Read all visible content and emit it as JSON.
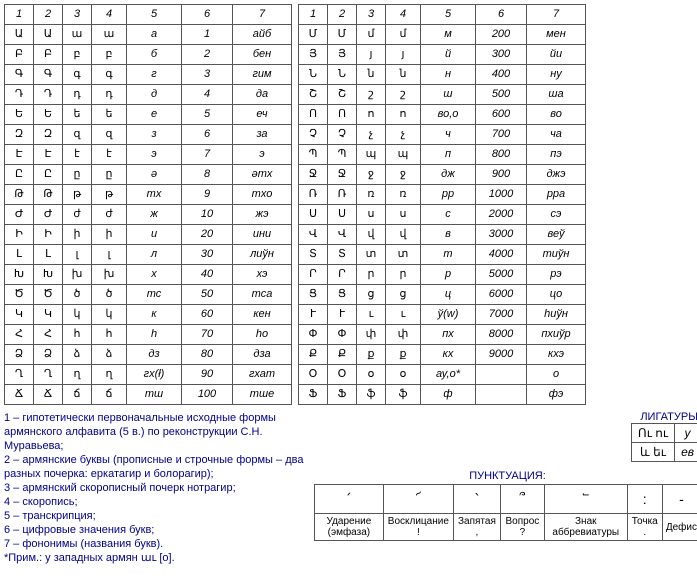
{
  "headers": [
    "1",
    "2",
    "3",
    "4",
    "5",
    "6",
    "7"
  ],
  "left_rows": [
    [
      "Ա",
      "Ա",
      "ա",
      "ա",
      "а",
      "1",
      "айб"
    ],
    [
      "Բ",
      "Բ",
      "բ",
      "բ",
      "б",
      "2",
      "бен"
    ],
    [
      "Գ",
      "Գ",
      "գ",
      "գ",
      "г",
      "3",
      "гим"
    ],
    [
      "Դ",
      "Դ",
      "դ",
      "դ",
      "д",
      "4",
      "да"
    ],
    [
      "Ե",
      "Ե",
      "ե",
      "ե",
      "е",
      "5",
      "еч"
    ],
    [
      "Զ",
      "Զ",
      "զ",
      "զ",
      "з",
      "6",
      "за"
    ],
    [
      "Է",
      "Է",
      "է",
      "է",
      "э",
      "7",
      "э"
    ],
    [
      "Ը",
      "Ը",
      "ը",
      "ը",
      "ə",
      "8",
      "əтх"
    ],
    [
      "Թ",
      "Թ",
      "թ",
      "թ",
      "тх",
      "9",
      "тхо"
    ],
    [
      "Ժ",
      "Ժ",
      "ժ",
      "ժ",
      "ж",
      "10",
      "жэ"
    ],
    [
      "Ի",
      "Ի",
      "ի",
      "ի",
      "и",
      "20",
      "ини"
    ],
    [
      "Լ",
      "Լ",
      "լ",
      "լ",
      "л",
      "30",
      "лиўн"
    ],
    [
      "Խ",
      "Խ",
      "խ",
      "խ",
      "х",
      "40",
      "хэ"
    ],
    [
      "Ծ",
      "Ծ",
      "ծ",
      "ծ",
      "тс",
      "50",
      "тса"
    ],
    [
      "Կ",
      "Կ",
      "կ",
      "կ",
      "к",
      "60",
      "кен"
    ],
    [
      "Հ",
      "Հ",
      "հ",
      "հ",
      "h",
      "70",
      "hо"
    ],
    [
      "Ձ",
      "Ձ",
      "ձ",
      "ձ",
      "дз",
      "80",
      "дза"
    ],
    [
      "Ղ",
      "Ղ",
      "ղ",
      "ղ",
      "гх(ł)",
      "90",
      "гхат"
    ],
    [
      "Ճ",
      "Ճ",
      "ճ",
      "ճ",
      "тш",
      "100",
      "тше"
    ]
  ],
  "right_rows": [
    [
      "Մ",
      "Մ",
      "մ",
      "մ",
      "м",
      "200",
      "мен"
    ],
    [
      "Յ",
      "Յ",
      "յ",
      "յ",
      "й",
      "300",
      "йи"
    ],
    [
      "Ն",
      "Ն",
      "ն",
      "ն",
      "н",
      "400",
      "ну"
    ],
    [
      "Շ",
      "Շ",
      "շ",
      "շ",
      "ш",
      "500",
      "ша"
    ],
    [
      "Ո",
      "Ո",
      "ո",
      "ո",
      "во,о",
      "600",
      "во"
    ],
    [
      "Չ",
      "Չ",
      "չ",
      "չ",
      "ч",
      "700",
      "ча"
    ],
    [
      "Պ",
      "Պ",
      "պ",
      "պ",
      "п",
      "800",
      "пэ"
    ],
    [
      "Ջ",
      "Ջ",
      "ջ",
      "ջ",
      "дж",
      "900",
      "джэ"
    ],
    [
      "Ռ",
      "Ռ",
      "ռ",
      "ռ",
      "рр",
      "1000",
      "рра"
    ],
    [
      "Ս",
      "Ս",
      "ս",
      "ս",
      "с",
      "2000",
      "сэ"
    ],
    [
      "Վ",
      "Վ",
      "վ",
      "վ",
      "в",
      "3000",
      "веў"
    ],
    [
      "Տ",
      "Տ",
      "տ",
      "տ",
      "т",
      "4000",
      "тиўн"
    ],
    [
      "Ր",
      "Ր",
      "ր",
      "ր",
      "р",
      "5000",
      "рэ"
    ],
    [
      "Ց",
      "Ց",
      "ց",
      "ց",
      "ц",
      "6000",
      "цо"
    ],
    [
      "Ւ",
      "Ւ",
      "ւ",
      "ւ",
      "ў(w)",
      "7000",
      "hиўн"
    ],
    [
      "Փ",
      "Փ",
      "փ",
      "փ",
      "пх",
      "8000",
      "пхиўр"
    ],
    [
      "Ք",
      "Ք",
      "ք",
      "ք",
      "кх",
      "9000",
      "кхэ"
    ],
    [
      "Օ",
      "Օ",
      "օ",
      "օ",
      "ау,о*",
      "",
      "о"
    ],
    [
      "Ֆ",
      "Ֆ",
      "ֆ",
      "ֆ",
      "ф",
      "",
      "фэ"
    ]
  ],
  "legend": [
    "1 – гипотетически первоначальные исходные формы армянского алфавита (5 в.) по реконструкции С.Н. Муравьева;",
    "2 – армянские буквы (прописные и строчные формы – два разных почерка: еркатагир и болорагир);",
    "3 – армянский скорописный почерк нотрагир;",
    "4 – скоропись;",
    "5 – транскрипция;",
    "6 – цифровые значения букв;",
    "7 – фононимы (названия букв).",
    "*Прим.: у западных армян աւ [o]."
  ],
  "ligatures": {
    "label": "ЛИГАТУРЫ:",
    "rows": [
      [
        "Ու ու",
        "у"
      ],
      [
        "և եւ",
        "ев"
      ]
    ]
  },
  "punctuation": {
    "label": "ПУНКТУАЦИЯ:",
    "glyphs": [
      "՛",
      "՜",
      "՝",
      "՞",
      "՟",
      ":",
      "-"
    ],
    "names": [
      "Ударение (эмфаза)",
      "Восклицание !",
      "Запятая ,",
      "Вопрос ?",
      "Знак аббревиатуры",
      "Точка .",
      "Дефис"
    ]
  }
}
